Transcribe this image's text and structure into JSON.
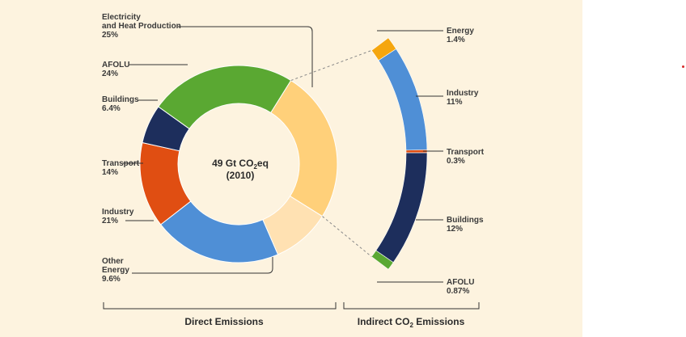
{
  "chart_data": {
    "type": "donut",
    "center_label": {
      "line1": "49 Gt CO",
      "sub": "2",
      "line1_suffix": "eq",
      "line2": "(2010)"
    },
    "direct": {
      "group_label": "Direct Emissions",
      "slices": [
        {
          "name_lines": [
            "Electricity",
            "and Heat Production"
          ],
          "value_text": "25%",
          "value": 25,
          "color": "#ffd07a"
        },
        {
          "name_lines": [
            "Other",
            "Energy"
          ],
          "value_text": "9.6%",
          "value": 9.6,
          "color": "#ffe1b2"
        },
        {
          "name_lines": [
            "Industry"
          ],
          "value_text": "21%",
          "value": 21,
          "color": "#4f8fd6"
        },
        {
          "name_lines": [
            "Transport"
          ],
          "value_text": "14%",
          "value": 14,
          "color": "#e04e12"
        },
        {
          "name_lines": [
            "Buildings"
          ],
          "value_text": "6.4%",
          "value": 6.4,
          "color": "#1d2e5c"
        },
        {
          "name_lines": [
            "AFOLU"
          ],
          "value_text": "24%",
          "value": 24,
          "color": "#5aa832"
        }
      ]
    },
    "indirect": {
      "group_label_pre": "Indirect CO",
      "group_label_sub": "2",
      "group_label_post": " Emissions",
      "slices": [
        {
          "name": "Energy",
          "value_text": "1.4%",
          "value": 1.4,
          "color": "#f5a60e"
        },
        {
          "name": "Industry",
          "value_text": "11%",
          "value": 11,
          "color": "#4f8fd6"
        },
        {
          "name": "Transport",
          "value_text": "0.3%",
          "value": 0.3,
          "color": "#e04e12"
        },
        {
          "name": "Buildings",
          "value_text": "12%",
          "value": 12,
          "color": "#1d2e5c"
        },
        {
          "name": "AFOLU",
          "value_text": "0.87%",
          "value": 0.87,
          "color": "#5aa832"
        }
      ]
    }
  }
}
